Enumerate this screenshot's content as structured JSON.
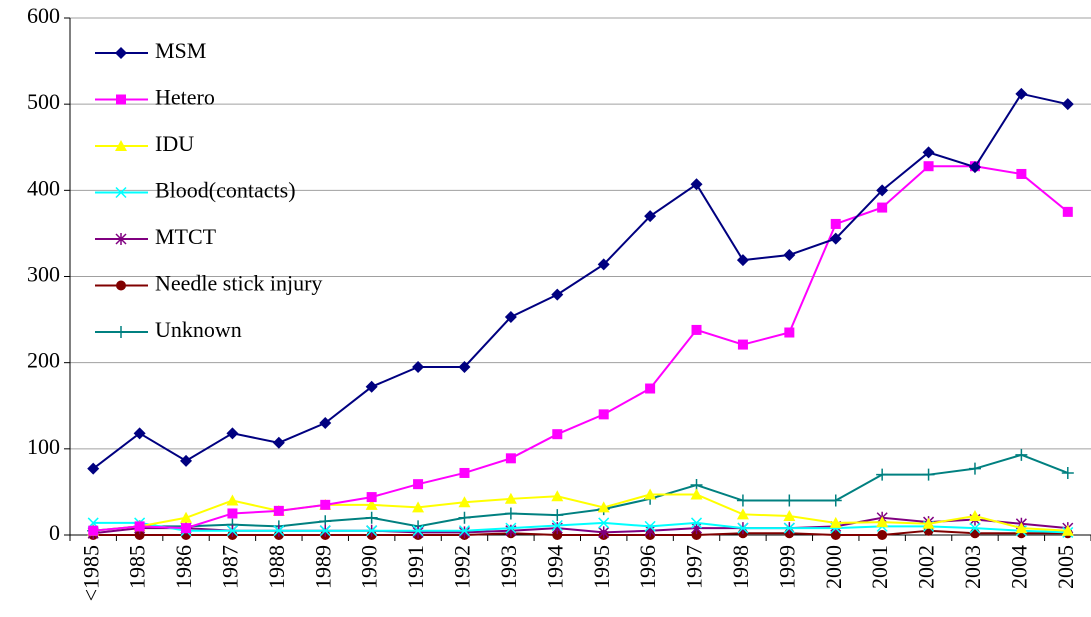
{
  "chart_data": {
    "type": "line",
    "categories": [
      "<1985",
      "1985",
      "1986",
      "1987",
      "1988",
      "1989",
      "1990",
      "1991",
      "1992",
      "1993",
      "1994",
      "1995",
      "1996",
      "1997",
      "1998",
      "1999",
      "2000",
      "2001",
      "2002",
      "2003",
      "2004",
      "2005"
    ],
    "series": [
      {
        "name": "MSM",
        "color": "#000080",
        "marker": "diamond",
        "values": [
          77,
          118,
          86,
          118,
          107,
          130,
          172,
          195,
          195,
          253,
          279,
          314,
          370,
          407,
          319,
          325,
          344,
          400,
          444,
          427,
          512,
          500
        ]
      },
      {
        "name": "Hetero",
        "color": "#ff00ff",
        "marker": "square",
        "values": [
          5,
          10,
          8,
          25,
          28,
          35,
          44,
          59,
          72,
          89,
          117,
          140,
          170,
          238,
          221,
          235,
          361,
          380,
          428,
          428,
          419,
          375
        ]
      },
      {
        "name": "IDU",
        "color": "#ffff00",
        "marker": "triangle",
        "values": [
          5,
          10,
          20,
          40,
          28,
          35,
          35,
          32,
          38,
          42,
          45,
          32,
          47,
          47,
          24,
          22,
          14,
          15,
          13,
          22,
          8,
          5
        ]
      },
      {
        "name": "Blood(contacts)",
        "color": "#00ffff",
        "marker": "x",
        "values": [
          14,
          14,
          5,
          5,
          5,
          5,
          5,
          5,
          5,
          8,
          11,
          14,
          10,
          14,
          8,
          8,
          8,
          10,
          10,
          8,
          5,
          3
        ]
      },
      {
        "name": "MTCT",
        "color": "#800080",
        "marker": "star",
        "values": [
          2,
          8,
          8,
          5,
          5,
          5,
          5,
          3,
          3,
          5,
          8,
          3,
          5,
          8,
          8,
          8,
          10,
          20,
          15,
          18,
          13,
          8
        ]
      },
      {
        "name": "Needle stick injury",
        "color": "#800000",
        "marker": "circle",
        "values": [
          0,
          0,
          0,
          0,
          0,
          0,
          0,
          0,
          0,
          2,
          0,
          0,
          0,
          0,
          2,
          2,
          0,
          0,
          5,
          2,
          2,
          2
        ]
      },
      {
        "name": "Unknown",
        "color": "#008080",
        "marker": "plus",
        "values": [
          5,
          10,
          10,
          12,
          10,
          16,
          20,
          10,
          20,
          25,
          23,
          30,
          42,
          58,
          40,
          40,
          40,
          70,
          70,
          77,
          93,
          72
        ]
      }
    ],
    "ylim": [
      0,
      600
    ],
    "yticks": [
      0,
      100,
      200,
      300,
      400,
      500,
      600
    ],
    "grid": true,
    "legend": "upper-left"
  }
}
